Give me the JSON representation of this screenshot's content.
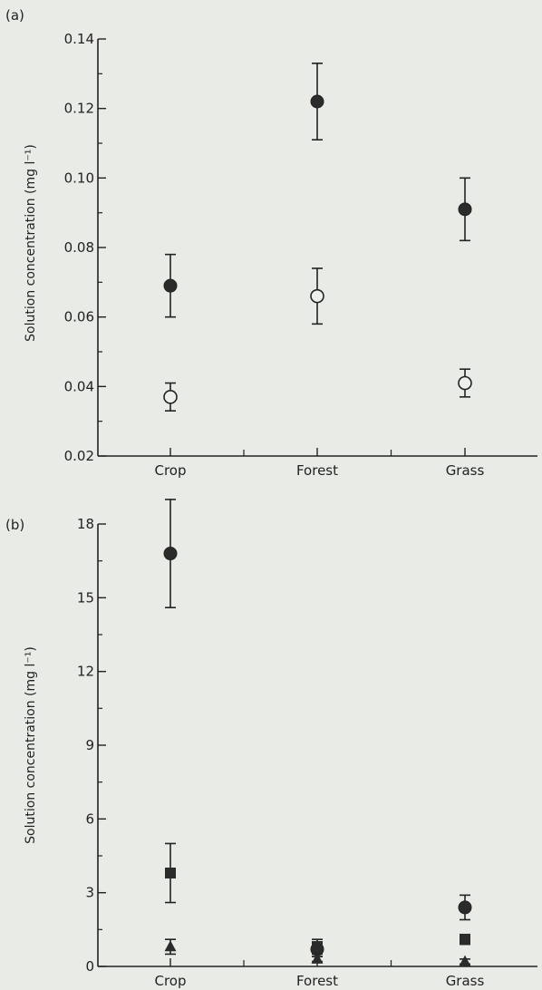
{
  "chart_data": [
    {
      "panel_label": "(a)",
      "type": "scatter",
      "title": "",
      "xlabel": "",
      "ylabel": "Solution concentration (mg l⁻¹)",
      "categories": [
        "Crop",
        "Forest",
        "Grass"
      ],
      "ylim": [
        0.02,
        0.14
      ],
      "yticks": [
        0.02,
        0.04,
        0.06,
        0.08,
        0.1,
        0.12,
        0.14
      ],
      "ytick_labels": [
        "0.02",
        "0.04",
        "0.06",
        "0.08",
        "0.10",
        "0.12",
        "0.14"
      ],
      "grid": false,
      "series": [
        {
          "marker": "filled-circle",
          "values": [
            0.069,
            0.122,
            0.091
          ],
          "err": [
            0.009,
            0.011,
            0.009
          ]
        },
        {
          "marker": "open-circle",
          "values": [
            0.037,
            0.066,
            0.041
          ],
          "err": [
            0.004,
            0.008,
            0.004
          ]
        }
      ]
    },
    {
      "panel_label": "(b)",
      "type": "scatter",
      "title": "",
      "xlabel": "",
      "ylabel": "Solution concentration (mg l⁻¹)",
      "categories": [
        "Crop",
        "Forest",
        "Grass"
      ],
      "ylim": [
        0,
        18
      ],
      "yticks": [
        0,
        3,
        6,
        9,
        12,
        15,
        18
      ],
      "ytick_labels": [
        "0",
        "3",
        "6",
        "9",
        "12",
        "15",
        "18"
      ],
      "grid": false,
      "series": [
        {
          "marker": "filled-circle",
          "values": [
            16.8,
            0.7,
            2.4
          ],
          "err": [
            2.2,
            0.3,
            0.5
          ]
        },
        {
          "marker": "filled-square",
          "values": [
            3.8,
            0.8,
            1.1
          ],
          "err": [
            1.2,
            0.3,
            0.2
          ]
        },
        {
          "marker": "filled-triangle",
          "values": [
            0.8,
            0.3,
            0.2
          ],
          "err": [
            0.3,
            0.1,
            0.1
          ]
        }
      ]
    }
  ]
}
